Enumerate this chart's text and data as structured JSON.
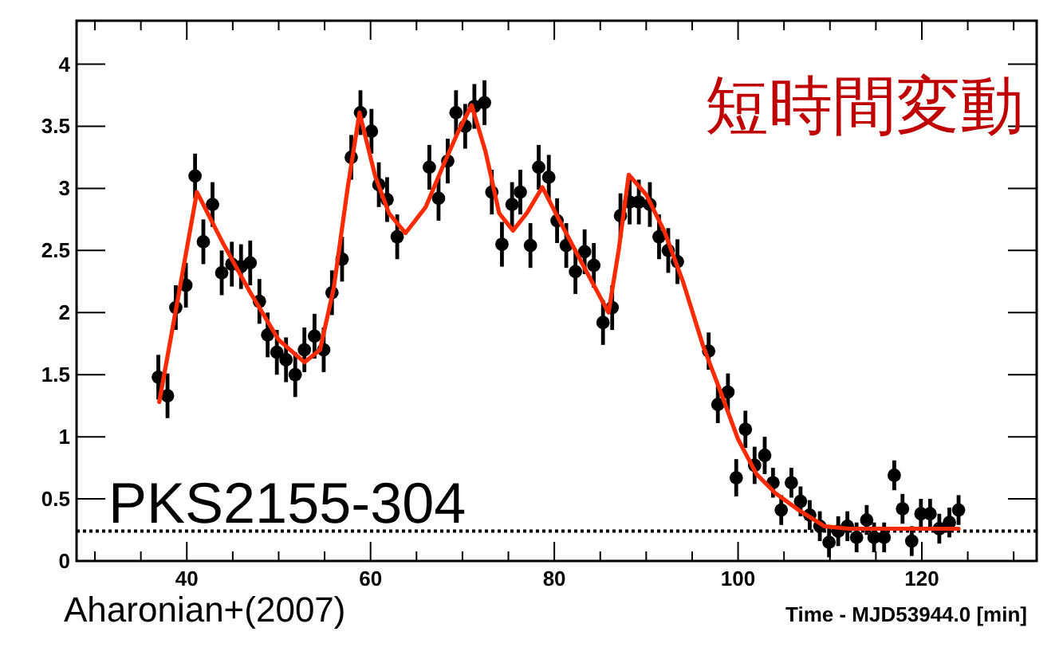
{
  "chart_data": {
    "type": "scatter",
    "xlabel": "Time - MJD53944.0 [min]",
    "annotations": [
      "短時間変動",
      "PKS2155-304",
      "Aharonian+(2007)"
    ],
    "xlim": [
      28,
      132.5
    ],
    "xticks": [
      40,
      60,
      80,
      100,
      120
    ],
    "ylim": [
      0,
      4.35
    ],
    "yticks": [
      0,
      0.5,
      1,
      1.5,
      2,
      2.5,
      3,
      3.5,
      4
    ],
    "ref_lines": [
      {
        "axis": "y",
        "value": 0.24,
        "line_style": "dotted",
        "color": "#000000"
      }
    ],
    "series": [
      {
        "color": "#000000",
        "marker": "circle",
        "x": [
          36.9,
          37.9,
          38.8,
          39.9,
          40.9,
          41.8,
          42.8,
          43.8,
          44.9,
          45.9,
          46.9,
          47.9,
          48.8,
          49.8,
          50.8,
          51.8,
          52.8,
          53.9,
          54.9,
          55.8,
          56.9,
          57.9,
          58.9,
          60.1,
          60.9,
          61.8,
          62.9,
          66.4,
          67.4,
          68.4,
          69.3,
          70.3,
          71.3,
          72.4,
          73.2,
          74.3,
          75.4,
          76.3,
          77.4,
          78.3,
          79.4,
          80.3,
          81.3,
          82.3,
          83.3,
          84.3,
          85.3,
          86.3,
          87.2,
          88.2,
          89.2,
          90.4,
          91.4,
          92.4,
          93.4,
          96.8,
          97.8,
          98.9,
          99.8,
          100.8,
          101.8,
          102.9,
          103.8,
          104.7,
          105.8,
          106.8,
          107.8,
          108.9,
          109.9,
          110.9,
          111.9,
          112.9,
          114.0,
          114.8,
          115.9,
          117.0,
          117.9,
          118.9,
          119.9,
          120.9,
          121.9,
          123.0,
          124.0
        ],
        "values": [
          1.48,
          1.33,
          2.04,
          2.22,
          3.1,
          2.57,
          2.87,
          2.32,
          2.39,
          2.37,
          2.4,
          2.09,
          1.82,
          1.68,
          1.62,
          1.5,
          1.7,
          1.81,
          1.7,
          2.16,
          2.43,
          3.25,
          3.61,
          3.46,
          3.03,
          2.91,
          2.61,
          3.17,
          2.92,
          3.22,
          3.61,
          3.5,
          3.66,
          3.69,
          2.97,
          2.55,
          2.87,
          2.97,
          2.54,
          3.17,
          3.09,
          2.74,
          2.54,
          2.33,
          2.49,
          2.38,
          1.92,
          2.04,
          2.78,
          2.89,
          2.89,
          2.87,
          2.61,
          2.5,
          2.41,
          1.69,
          1.26,
          1.36,
          0.67,
          1.06,
          0.77,
          0.85,
          0.63,
          0.41,
          0.63,
          0.48,
          0.37,
          0.28,
          0.15,
          0.24,
          0.28,
          0.19,
          0.33,
          0.19,
          0.19,
          0.69,
          0.42,
          0.16,
          0.38,
          0.38,
          0.26,
          0.31,
          0.41
        ],
        "errors": [
          0.18,
          0.18,
          0.18,
          0.18,
          0.18,
          0.18,
          0.18,
          0.18,
          0.18,
          0.18,
          0.18,
          0.18,
          0.18,
          0.18,
          0.18,
          0.18,
          0.18,
          0.18,
          0.18,
          0.18,
          0.18,
          0.18,
          0.18,
          0.18,
          0.18,
          0.18,
          0.18,
          0.18,
          0.18,
          0.18,
          0.18,
          0.18,
          0.18,
          0.18,
          0.18,
          0.18,
          0.18,
          0.18,
          0.18,
          0.18,
          0.18,
          0.18,
          0.18,
          0.18,
          0.18,
          0.18,
          0.18,
          0.18,
          0.18,
          0.18,
          0.18,
          0.18,
          0.18,
          0.18,
          0.18,
          0.15,
          0.15,
          0.15,
          0.15,
          0.15,
          0.15,
          0.15,
          0.12,
          0.12,
          0.12,
          0.12,
          0.12,
          0.12,
          0.12,
          0.12,
          0.12,
          0.12,
          0.12,
          0.12,
          0.12,
          0.12,
          0.12,
          0.12,
          0.12,
          0.12,
          0.12,
          0.12,
          0.12
        ]
      },
      {
        "type": "line",
        "color": "#ff2a00",
        "x": [
          37,
          39,
          41.1,
          44,
          47,
          50,
          52.8,
          54.5,
          56,
          57.5,
          58.8,
          60.5,
          62,
          63.8,
          66,
          68,
          69.5,
          71,
          72.5,
          74,
          75.5,
          77,
          78.7,
          80.5,
          83,
          85.9,
          87,
          88.1,
          90,
          92,
          94,
          96.2,
          97.9,
          100,
          102,
          104,
          106.6,
          109.4,
          112,
          124
        ],
        "values": [
          1.28,
          2.1,
          2.97,
          2.55,
          2.15,
          1.78,
          1.6,
          1.7,
          2.2,
          3.0,
          3.61,
          3.1,
          2.8,
          2.64,
          2.85,
          3.2,
          3.45,
          3.67,
          3.3,
          2.8,
          2.66,
          2.8,
          3.01,
          2.75,
          2.4,
          2.0,
          2.5,
          3.11,
          2.95,
          2.65,
          2.25,
          1.73,
          1.4,
          0.98,
          0.7,
          0.55,
          0.41,
          0.28,
          0.26,
          0.26
        ]
      }
    ]
  }
}
